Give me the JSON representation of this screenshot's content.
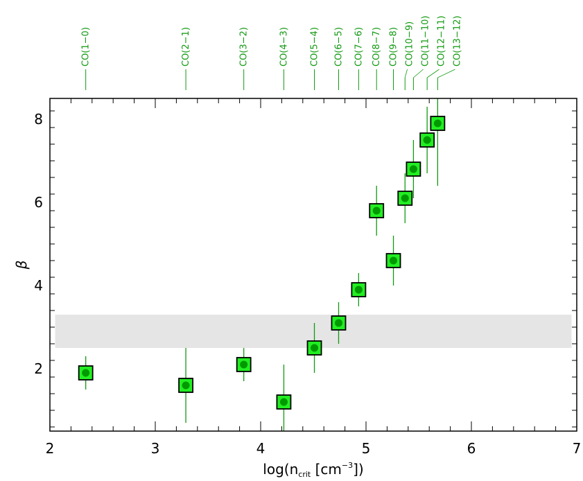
{
  "chart_data": {
    "type": "scatter",
    "title": "",
    "xlabel": "log(n",
    "xlabel_sub": "crit",
    "xlabel_units": " [cm",
    "xlabel_sup": "−3",
    "xlabel_end": "])",
    "ylabel": "β",
    "xlim": [
      2,
      7
    ],
    "ylim": [
      0.5,
      8.5
    ],
    "x_ticks": [
      "2",
      "3",
      "4",
      "5",
      "6",
      "7"
    ],
    "y_ticks": [
      "2",
      "4",
      "6",
      "8"
    ],
    "grid": false,
    "band": {
      "y_low": 2.5,
      "y_high": 3.3,
      "color": "#e5e5e5"
    },
    "colors": {
      "marker_fill": "#22ee22",
      "marker_core": "#009900",
      "errorbar": "#119911",
      "label": "#119911"
    },
    "points": [
      {
        "label": "CO(1−0)",
        "x": 2.34,
        "y": 1.9,
        "err": 0.4
      },
      {
        "label": "CO(2−1)",
        "x": 3.29,
        "y": 1.6,
        "err": 0.9
      },
      {
        "label": "CO(3−2)",
        "x": 3.84,
        "y": 2.1,
        "err": 0.4
      },
      {
        "label": "CO(4−3)",
        "x": 4.22,
        "y": 1.2,
        "err": 0.9
      },
      {
        "label": "CO(5−4)",
        "x": 4.51,
        "y": 2.5,
        "err": 0.6
      },
      {
        "label": "CO(6−5)",
        "x": 4.74,
        "y": 3.1,
        "err": 0.5
      },
      {
        "label": "CO(7−6)",
        "x": 4.93,
        "y": 3.9,
        "err": 0.4
      },
      {
        "label": "CO(8−7)",
        "x": 5.1,
        "y": 5.8,
        "err": 0.6
      },
      {
        "label": "CO(9−8)",
        "x": 5.26,
        "y": 4.6,
        "err": 0.6
      },
      {
        "label": "CO(10−9)",
        "x": 5.37,
        "y": 6.1,
        "err": 0.6
      },
      {
        "label": "CO(11−10)",
        "x": 5.45,
        "y": 6.8,
        "err": 0.7
      },
      {
        "label": "CO(12−11)",
        "x": 5.58,
        "y": 7.5,
        "err": 0.8
      },
      {
        "label": "CO(13−12)",
        "x": 5.68,
        "y": 7.9,
        "err": 1.5
      }
    ]
  }
}
